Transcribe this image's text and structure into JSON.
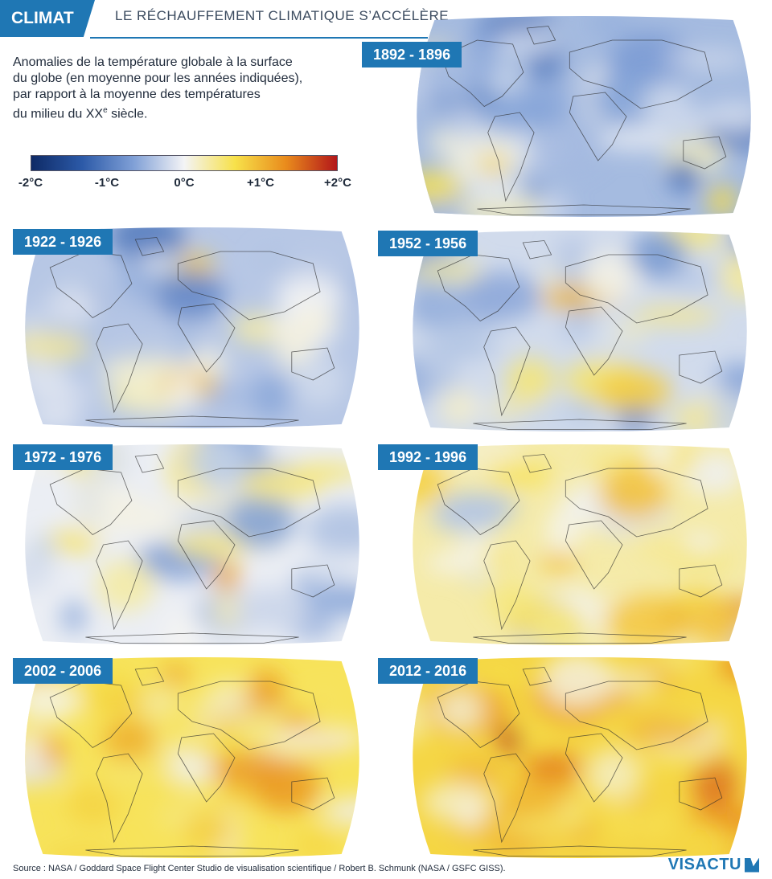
{
  "header": {
    "tag": "CLIMAT",
    "title": "LE RÉCHAUFFEMENT CLIMATIQUE S’ACCÉLÈRE"
  },
  "intro": {
    "line1": "Anomalies de la température globale à la surface",
    "line2": "du globe (en moyenne pour les années indiquées),",
    "line3": "par rapport à la moyenne des températures",
    "line4_prefix": "du milieu du XX",
    "line4_sup": "e",
    "line4_suffix": " siècle."
  },
  "legend": {
    "colors": [
      "#0e2a66",
      "#2c5aa8",
      "#7f9fd6",
      "#f4f4f6",
      "#f7e14a",
      "#e98b1c",
      "#b3161a"
    ],
    "ticks": [
      "-2°C",
      "-1°C",
      "0°C",
      "+1°C",
      "+2°C"
    ]
  },
  "maps": [
    {
      "label": "1892 - 1896",
      "anomaly": -0.45
    },
    {
      "label": "1922 - 1926",
      "anomaly": -0.35
    },
    {
      "label": "1952 - 1956",
      "anomaly": -0.2
    },
    {
      "label": "1972 - 1976",
      "anomaly": -0.05
    },
    {
      "label": "1992 - 1996",
      "anomaly": 0.3
    },
    {
      "label": "2002 - 2006",
      "anomaly": 0.6
    },
    {
      "label": "2012 - 2016",
      "anomaly": 0.75
    }
  ],
  "footer": {
    "source": "Source : NASA / Goddard Space Flight Center Studio de visualisation scientifique /  Robert B. Schmunk (NASA / GSFC GISS).",
    "logo": "VISACTU"
  }
}
